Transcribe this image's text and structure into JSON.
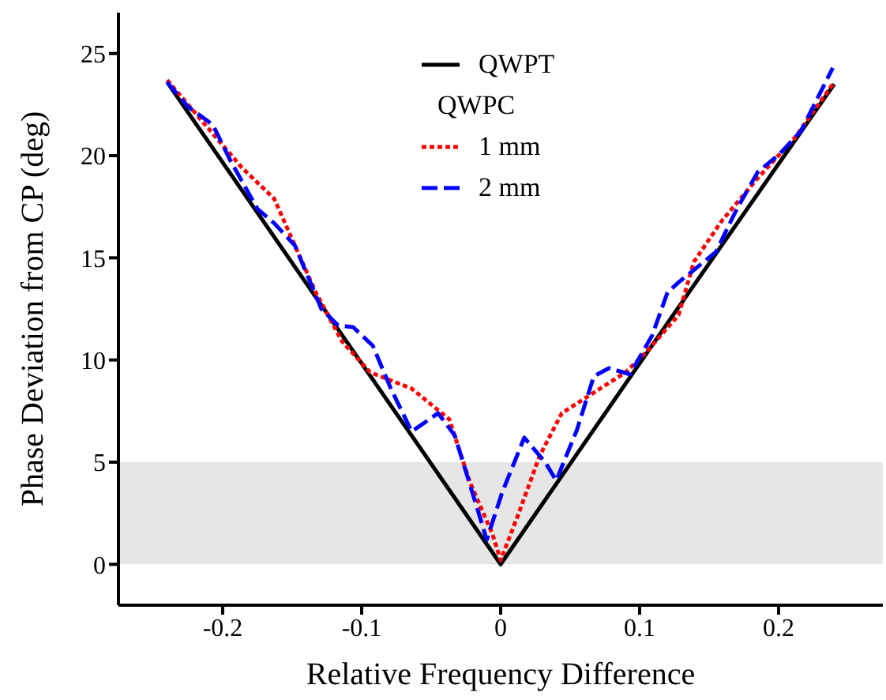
{
  "chart_data": {
    "type": "line",
    "xlabel": "Relative Frequency Difference",
    "ylabel": "Phase Deviation from CP (deg)",
    "xlim": [
      -0.275,
      0.275
    ],
    "xticks": [
      -0.2,
      -0.1,
      0,
      0.1,
      0.2
    ],
    "ylim": [
      -2,
      27
    ],
    "yticks": [
      0,
      5,
      10,
      15,
      20,
      25
    ],
    "legend": "top",
    "annotations": [
      "QWPC"
    ],
    "bands": [
      {
        "axis": "y",
        "from": 0,
        "to": 5,
        "color": "#e6e6e6"
      }
    ],
    "series": [
      {
        "name": "QWPT",
        "color": "#000000",
        "line_style": "solid",
        "x": [
          -0.24,
          -0.12,
          0,
          0.12,
          0.24
        ],
        "values": [
          23.6,
          11.8,
          0,
          11.8,
          23.5
        ]
      },
      {
        "name": "1 mm",
        "color": "#ff0000",
        "line_style": "dotted",
        "x": [
          -0.24,
          -0.186,
          -0.163,
          -0.133,
          -0.114,
          -0.094,
          -0.064,
          -0.037,
          -0.022,
          -0.006,
          0,
          0.013,
          0.028,
          0.044,
          0.067,
          0.09,
          0.105,
          0.128,
          0.139,
          0.159,
          0.185,
          0.212,
          0.239
        ],
        "values": [
          23.7,
          19.4,
          17.9,
          13.3,
          10.9,
          9.4,
          8.6,
          7.1,
          4.0,
          1.5,
          0.2,
          2.5,
          5.3,
          7.4,
          8.4,
          9.4,
          10.4,
          12.2,
          14.8,
          16.8,
          18.9,
          20.9,
          23.5
        ]
      },
      {
        "name": "2 mm",
        "color": "#0000ff",
        "line_style": "dashed",
        "x": [
          -0.24,
          -0.225,
          -0.207,
          -0.194,
          -0.175,
          -0.163,
          -0.148,
          -0.129,
          -0.117,
          -0.106,
          -0.092,
          -0.079,
          -0.064,
          -0.045,
          -0.033,
          -0.018,
          -0.01,
          0.001,
          0.017,
          0.032,
          0.04,
          0.055,
          0.067,
          0.078,
          0.093,
          0.109,
          0.12,
          0.128,
          0.139,
          0.155,
          0.17,
          0.185,
          0.201,
          0.216,
          0.239
        ],
        "values": [
          23.6,
          22.4,
          21.5,
          19.7,
          17.4,
          16.7,
          15.6,
          12.5,
          11.7,
          11.6,
          10.7,
          8.6,
          6.5,
          7.4,
          6.3,
          3.0,
          1.2,
          3.5,
          6.2,
          5.0,
          4.1,
          6.6,
          9.2,
          9.6,
          9.3,
          11.2,
          13.3,
          13.8,
          14.4,
          15.3,
          17.4,
          19.2,
          20.1,
          21.2,
          24.3
        ]
      }
    ]
  }
}
